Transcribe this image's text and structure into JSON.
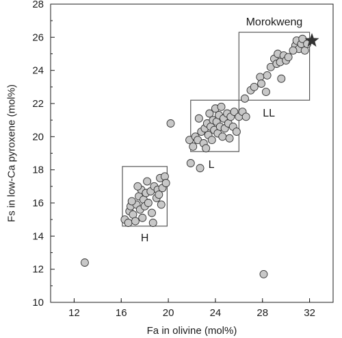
{
  "chart_data": {
    "type": "scatter",
    "xlabel": "Fa in olivine (mol%)",
    "ylabel": "Fs in low-Ca pyroxene (mol%)",
    "xlim": [
      10,
      34
    ],
    "ylim": [
      10,
      28
    ],
    "x_ticks": [
      12,
      16,
      20,
      24,
      28,
      32
    ],
    "y_ticks": [
      10,
      12,
      14,
      16,
      18,
      20,
      22,
      24,
      26,
      28
    ],
    "grid": false,
    "marker_fill": "#c8c8c8",
    "marker_edge": "#333333",
    "regions": [
      {
        "label": "H",
        "x_range": [
          16.1,
          19.9
        ],
        "y_range": [
          14.6,
          18.2
        ]
      },
      {
        "label": "L",
        "x_range": [
          21.9,
          26.0
        ],
        "y_range": [
          19.1,
          22.2
        ]
      },
      {
        "label": "LL",
        "x_range": [
          26.0,
          32.0
        ],
        "y_range": [
          22.2,
          26.3
        ]
      }
    ],
    "highlight": {
      "label": "Morokweng",
      "x": 32.2,
      "y": 25.8,
      "marker": "star",
      "color": "#333333"
    },
    "points": [
      [
        16.3,
        15.0
      ],
      [
        16.6,
        14.8
      ],
      [
        16.7,
        15.5
      ],
      [
        16.8,
        15.8
      ],
      [
        17.0,
        15.3
      ],
      [
        17.2,
        14.9
      ],
      [
        17.3,
        15.9
      ],
      [
        17.5,
        16.4
      ],
      [
        17.6,
        15.6
      ],
      [
        17.7,
        16.8
      ],
      [
        17.9,
        16.2
      ],
      [
        18.0,
        15.8
      ],
      [
        18.1,
        16.6
      ],
      [
        18.3,
        16.0
      ],
      [
        18.5,
        16.7
      ],
      [
        18.6,
        15.4
      ],
      [
        18.8,
        17.0
      ],
      [
        19.0,
        16.3
      ],
      [
        19.1,
        16.8
      ],
      [
        19.3,
        17.5
      ],
      [
        19.4,
        15.9
      ],
      [
        19.5,
        16.9
      ],
      [
        19.7,
        17.6
      ],
      [
        19.8,
        17.2
      ],
      [
        17.4,
        17.0
      ],
      [
        18.2,
        17.3
      ],
      [
        16.9,
        16.1
      ],
      [
        18.7,
        14.8
      ],
      [
        17.8,
        15.1
      ],
      [
        19.2,
        16.5
      ],
      [
        20.2,
        20.8
      ],
      [
        21.8,
        19.8
      ],
      [
        21.9,
        18.4
      ],
      [
        22.1,
        19.4
      ],
      [
        22.3,
        20.0
      ],
      [
        22.5,
        19.8
      ],
      [
        22.6,
        21.1
      ],
      [
        22.7,
        18.1
      ],
      [
        22.8,
        20.3
      ],
      [
        23.0,
        19.6
      ],
      [
        23.1,
        20.5
      ],
      [
        23.2,
        19.3
      ],
      [
        23.3,
        20.8
      ],
      [
        23.4,
        20.1
      ],
      [
        23.5,
        21.4
      ],
      [
        23.6,
        20.6
      ],
      [
        23.7,
        19.8
      ],
      [
        23.8,
        21.0
      ],
      [
        23.9,
        20.4
      ],
      [
        24.0,
        21.7
      ],
      [
        24.1,
        20.9
      ],
      [
        24.2,
        20.2
      ],
      [
        24.3,
        21.3
      ],
      [
        24.4,
        20.6
      ],
      [
        24.5,
        21.8
      ],
      [
        24.6,
        20.0
      ],
      [
        24.7,
        21.1
      ],
      [
        24.8,
        20.5
      ],
      [
        25.0,
        21.4
      ],
      [
        25.1,
        20.8
      ],
      [
        25.2,
        19.9
      ],
      [
        25.3,
        21.2
      ],
      [
        25.5,
        20.6
      ],
      [
        25.6,
        21.5
      ],
      [
        25.8,
        20.3
      ],
      [
        26.0,
        21.2
      ],
      [
        26.3,
        21.5
      ],
      [
        26.6,
        21.2
      ],
      [
        26.5,
        22.3
      ],
      [
        27.0,
        22.8
      ],
      [
        27.3,
        23.0
      ],
      [
        27.8,
        23.6
      ],
      [
        27.9,
        23.2
      ],
      [
        28.3,
        22.7
      ],
      [
        28.4,
        23.7
      ],
      [
        28.7,
        24.2
      ],
      [
        29.0,
        24.7
      ],
      [
        29.2,
        24.4
      ],
      [
        29.3,
        25.0
      ],
      [
        29.5,
        24.5
      ],
      [
        29.6,
        23.5
      ],
      [
        29.8,
        24.9
      ],
      [
        30.0,
        24.6
      ],
      [
        30.2,
        24.8
      ],
      [
        30.8,
        25.5
      ],
      [
        30.9,
        25.8
      ],
      [
        31.1,
        25.3
      ],
      [
        31.3,
        25.6
      ],
      [
        31.4,
        25.9
      ],
      [
        31.6,
        25.2
      ],
      [
        31.8,
        25.6
      ],
      [
        30.6,
        25.2
      ],
      [
        12.9,
        12.4
      ],
      [
        28.1,
        11.7
      ]
    ]
  }
}
